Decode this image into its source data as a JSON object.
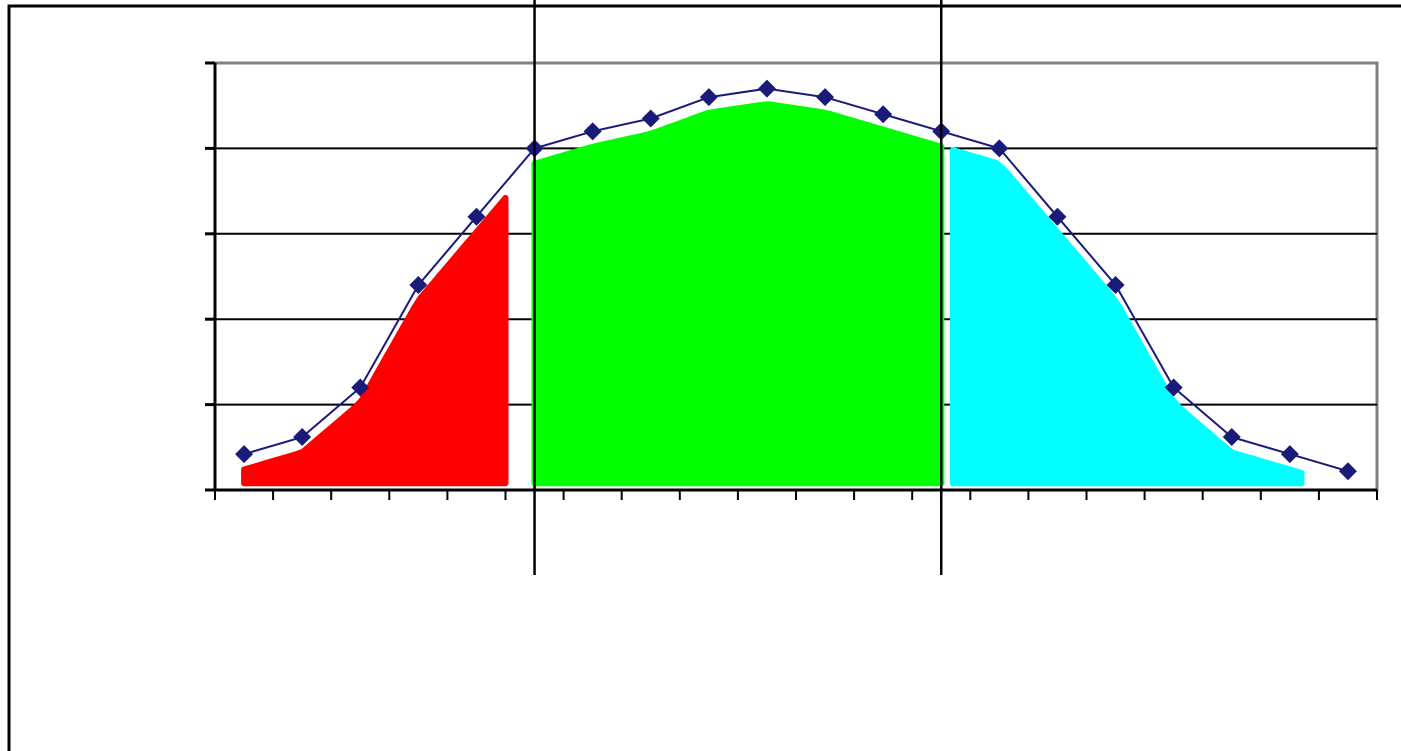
{
  "chart_data": {
    "type": "line",
    "title": "",
    "xlabel": "",
    "ylabel": "",
    "x": [
      1,
      2,
      3,
      4,
      5,
      6,
      7,
      8,
      9,
      10,
      11,
      12,
      13,
      14,
      15,
      16,
      17,
      18,
      19,
      20
    ],
    "xlim": [
      0.5,
      20.5
    ],
    "ylim": [
      0,
      5
    ],
    "y_ticks": [
      0,
      1,
      2,
      3,
      4,
      5
    ],
    "grid": true,
    "legend": "none",
    "series": [
      {
        "values": [
          0.42,
          0.62,
          1.2,
          2.4,
          3.2,
          4.0,
          4.2,
          4.35,
          4.6,
          4.7,
          4.6,
          4.4,
          4.2,
          4.0,
          3.2,
          2.4,
          1.2,
          0.62,
          0.42,
          0.22
        ],
        "color": "#1a1a7a",
        "marker": "diamond"
      }
    ],
    "shaded_regions": [
      {
        "color": "#ff0000",
        "x_range": [
          1.0,
          5.5
        ]
      },
      {
        "color": "#00ff00",
        "x_range": [
          6.0,
          13.0
        ]
      },
      {
        "color": "#00ffff",
        "x_range": [
          13.2,
          19.2
        ]
      }
    ],
    "vertical_lines": [
      6.0,
      13.0
    ]
  },
  "colors": {
    "red_region": "#ff0000",
    "green_region": "#00ff00",
    "cyan_region": "#00ffff",
    "series_line": "#1a1a7a",
    "grid": "#000000",
    "plot_border": "#808080"
  }
}
